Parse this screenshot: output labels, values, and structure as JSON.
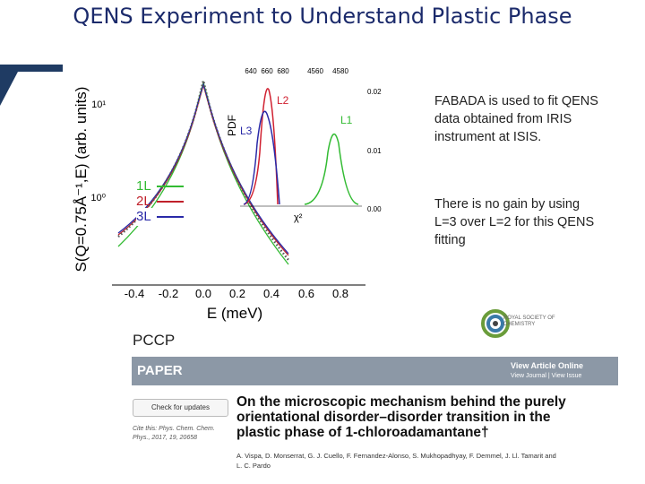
{
  "title": "QENS Experiment to Understand Plastic Phase",
  "figure": {
    "x_label": "E (meV)",
    "y_label": "S(Q=0.75Å⁻¹,E) (arb. units)",
    "x_ticks": [
      "-0.4",
      "-0.2",
      "0.0",
      "0.2",
      "0.4",
      "0.6",
      "0.8"
    ],
    "y_ticks": [
      "10¹",
      "10⁰"
    ],
    "legend": [
      "1L",
      "2L",
      "3L"
    ],
    "inset": {
      "y_label": "PDF",
      "top_ticks": [
        "640",
        "660",
        "680",
        "4560",
        "4580"
      ],
      "right_ticks": [
        "0.02",
        "0.01",
        "0.00"
      ],
      "curve_labels": [
        "L2",
        "L3",
        "L1"
      ],
      "chi_label": "χ²"
    }
  },
  "notes": [
    "FABADA is used to fit QENS data obtained from IRIS instrument at ISIS.",
    "There is no gain by using L=3 over L=2 for this QENS fitting"
  ],
  "paper": {
    "journal": "PCCP",
    "publisher": "ROYAL SOCIETY OF CHEMISTRY",
    "section": "PAPER",
    "view_online": "View Article Online",
    "view_links": "View Journal | View Issue",
    "check_updates": "Check for updates",
    "citation": "Cite this: Phys. Chem. Chem. Phys., 2017, 19, 20658",
    "title": "On the microscopic mechanism behind the purely orientational disorder–disorder transition in the plastic phase of 1-chloroadamantane†",
    "authors": "A. Vispa, D. Monserrat, G. J. Cuello, F. Fernandez-Alonso, S. Mukhopadhyay, F. Demmel, J. Ll. Tamarit and L. C. Pardo"
  }
}
